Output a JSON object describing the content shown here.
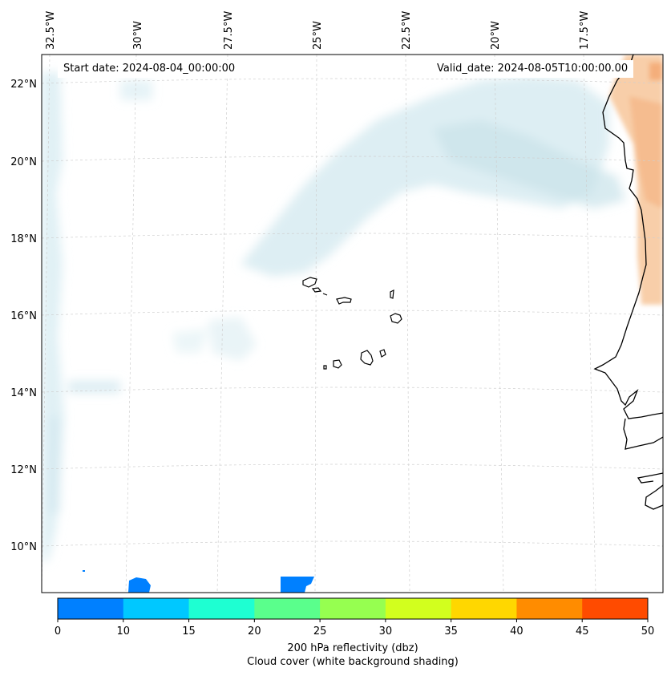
{
  "map": {
    "start_date": "Start date: 2024-08-04_00:00:00",
    "valid_date": "Valid_date: 2024-08-05T10:00:00.00",
    "lon_labels": [
      "32.5°W",
      "30°W",
      "27.5°W",
      "25°W",
      "22.5°W",
      "20°W",
      "17.5°W"
    ],
    "lat_labels": [
      "22°N",
      "20°N",
      "18°N",
      "16°N",
      "14°N",
      "12°N",
      "10°N"
    ],
    "gridlines": true,
    "coastline_color": "#000000",
    "cloud_shading_color": "#cfe6ef"
  },
  "colorbar": {
    "ticks": [
      "0",
      "10",
      "15",
      "20",
      "25",
      "30",
      "35",
      "40",
      "45",
      "50"
    ],
    "colors": [
      "#0080ff",
      "#00c8ff",
      "#1effd2",
      "#5aff8c",
      "#96ff50",
      "#d2ff1e",
      "#ffd700",
      "#ff8c00",
      "#ff4b00"
    ],
    "label": "200 hPa reflectivity (dbz)",
    "sublabel": "Cloud cover (white background shading)"
  }
}
